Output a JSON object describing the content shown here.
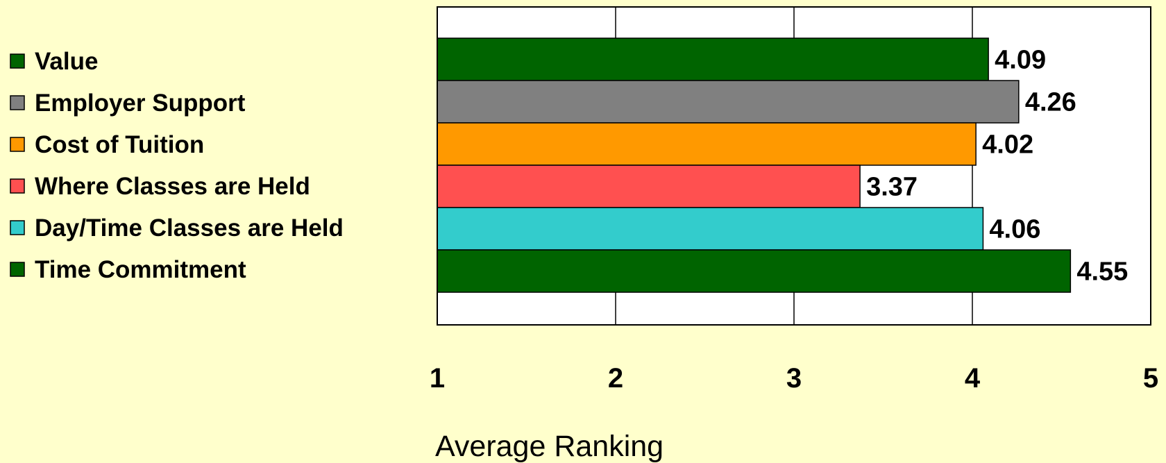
{
  "chart_data": {
    "type": "bar",
    "orientation": "horizontal",
    "title": "",
    "xlabel": "Average Ranking",
    "ylabel": "",
    "xlim": [
      1,
      5
    ],
    "x_ticks": [
      "1",
      "2",
      "3",
      "4",
      "5"
    ],
    "grid": "vertical",
    "legend_position": "left",
    "categories": [
      "Value",
      "Employer Support",
      "Cost of Tuition",
      "Where Classes are Held",
      "Day/Time Classes are Held",
      "Time Commitment"
    ],
    "values": [
      4.09,
      4.26,
      4.02,
      3.37,
      4.06,
      4.55
    ],
    "value_labels": [
      "4.09",
      "4.26",
      "4.02",
      "3.37",
      "4.06",
      "4.55"
    ],
    "colors": [
      "#006400",
      "#808080",
      "#ff9900",
      "#ff5050",
      "#33cccc",
      "#006400"
    ],
    "background_color": "#ffffcc",
    "plot_background_color": "#ffffff"
  }
}
